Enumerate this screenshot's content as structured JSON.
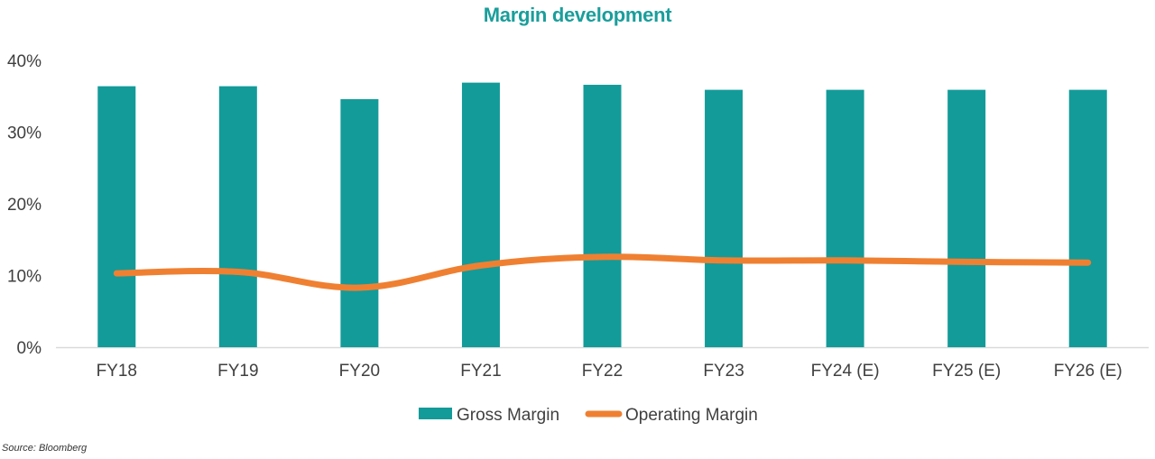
{
  "chart_data": {
    "type": "bar",
    "title": "Margin development",
    "categories": [
      "FY18",
      "FY19",
      "FY20",
      "FY21",
      "FY22",
      "FY23",
      "FY24 (E)",
      "FY25 (E)",
      "FY26 (E)"
    ],
    "series": [
      {
        "name": "Gross Margin",
        "type": "bar",
        "color": "#139b99",
        "values": [
          36.4,
          36.4,
          34.6,
          36.9,
          36.6,
          35.9,
          35.9,
          35.9,
          35.9
        ]
      },
      {
        "name": "Operating Margin",
        "type": "line",
        "color": "#ef8032",
        "values": [
          10.3,
          10.5,
          8.3,
          11.4,
          12.6,
          12.1,
          12.1,
          11.9,
          11.8
        ]
      }
    ],
    "yticks": [
      "0%",
      "10%",
      "20%",
      "30%",
      "40%"
    ],
    "ylim": [
      0,
      40
    ],
    "grid": false,
    "legend_position": "bottom",
    "title_color": "#1a9e9b",
    "source": "Source: Bloomberg"
  }
}
